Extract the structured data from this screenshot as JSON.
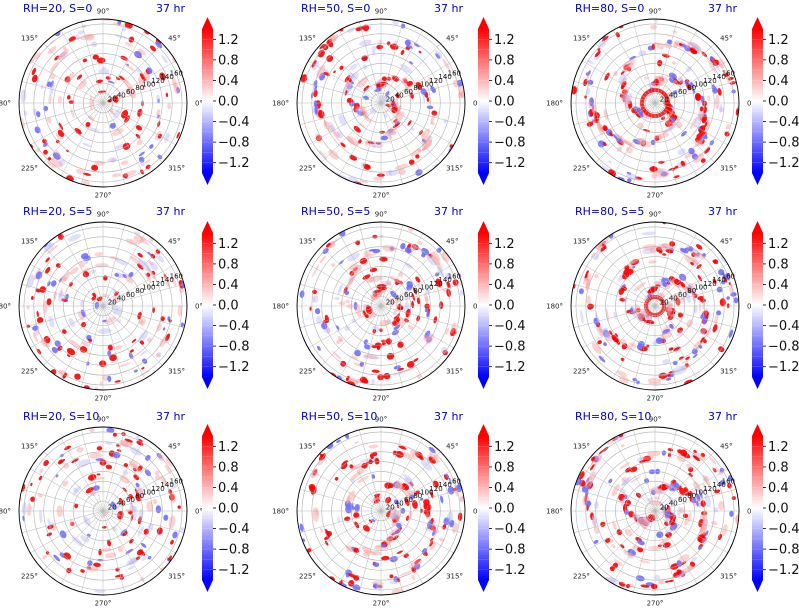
{
  "figure": {
    "colormap": "bwr",
    "cmap_colors": {
      "low": "#0000ff",
      "mid": "#ffffff",
      "high": "#ff0000"
    }
  },
  "chart_data": [
    {
      "type": "heatmap",
      "projection": "polar",
      "title": "RH=20, S=0",
      "time_label": "37 hr",
      "theta_ticks": [
        "0°",
        "45°",
        "90°",
        "135°",
        "180°",
        "225°",
        "270°",
        "315°"
      ],
      "r_ticks": [
        "20",
        "40",
        "60",
        "80",
        "100",
        "120",
        "140",
        "160"
      ],
      "rlim": [
        0,
        170
      ],
      "colorbar": {
        "ticks": [
          "1.2",
          "0.8",
          "0.4",
          "0.0",
          "−0.4",
          "−0.8",
          "−1.2"
        ],
        "range": [
          -1.4,
          1.4
        ],
        "extend": "both"
      }
    },
    {
      "type": "heatmap",
      "projection": "polar",
      "title": "RH=50, S=0",
      "time_label": "37 hr",
      "theta_ticks": [
        "0°",
        "45°",
        "90°",
        "135°",
        "180°",
        "225°",
        "270°",
        "315°"
      ],
      "r_ticks": [
        "20",
        "40",
        "60",
        "80",
        "100",
        "120",
        "140",
        "160"
      ],
      "rlim": [
        0,
        170
      ],
      "colorbar": {
        "ticks": [
          "1.2",
          "0.8",
          "0.4",
          "0.0",
          "−0.4",
          "−0.8",
          "−1.2"
        ],
        "range": [
          -1.4,
          1.4
        ],
        "extend": "both"
      }
    },
    {
      "type": "heatmap",
      "projection": "polar",
      "title": "RH=80, S=0",
      "time_label": "37 hr",
      "theta_ticks": [
        "0°",
        "45°",
        "90°",
        "135°",
        "180°",
        "225°",
        "270°",
        "315°"
      ],
      "r_ticks": [
        "20",
        "40",
        "60",
        "80",
        "100",
        "120",
        "140",
        "160"
      ],
      "rlim": [
        0,
        170
      ],
      "colorbar": {
        "ticks": [
          "1.2",
          "0.8",
          "0.4",
          "0.0",
          "−0.4",
          "−0.8",
          "−1.2"
        ],
        "range": [
          -1.4,
          1.4
        ],
        "extend": "both"
      }
    },
    {
      "type": "heatmap",
      "projection": "polar",
      "title": "RH=20, S=5",
      "time_label": "37 hr",
      "theta_ticks": [
        "0°",
        "45°",
        "90°",
        "135°",
        "180°",
        "225°",
        "270°",
        "315°"
      ],
      "r_ticks": [
        "20",
        "40",
        "60",
        "80",
        "100",
        "120",
        "140",
        "160"
      ],
      "rlim": [
        0,
        170
      ],
      "colorbar": {
        "ticks": [
          "1.2",
          "0.8",
          "0.4",
          "0.0",
          "−0.4",
          "−0.8",
          "−1.2"
        ],
        "range": [
          -1.4,
          1.4
        ],
        "extend": "both"
      }
    },
    {
      "type": "heatmap",
      "projection": "polar",
      "title": "RH=50, S=5",
      "time_label": "37 hr",
      "theta_ticks": [
        "0°",
        "45°",
        "90°",
        "135°",
        "180°",
        "225°",
        "270°",
        "315°"
      ],
      "r_ticks": [
        "20",
        "40",
        "60",
        "80",
        "100",
        "120",
        "140",
        "160"
      ],
      "rlim": [
        0,
        170
      ],
      "colorbar": {
        "ticks": [
          "1.2",
          "0.8",
          "0.4",
          "0.0",
          "−0.4",
          "−0.8",
          "−1.2"
        ],
        "range": [
          -1.4,
          1.4
        ],
        "extend": "both"
      }
    },
    {
      "type": "heatmap",
      "projection": "polar",
      "title": "RH=80, S=5",
      "time_label": "37 hr",
      "theta_ticks": [
        "0°",
        "45°",
        "90°",
        "135°",
        "180°",
        "225°",
        "270°",
        "315°"
      ],
      "r_ticks": [
        "20",
        "40",
        "60",
        "80",
        "100",
        "120",
        "140",
        "160"
      ],
      "rlim": [
        0,
        170
      ],
      "colorbar": {
        "ticks": [
          "1.2",
          "0.8",
          "0.4",
          "0.0",
          "−0.4",
          "−0.8",
          "−1.2"
        ],
        "range": [
          -1.4,
          1.4
        ],
        "extend": "both"
      }
    },
    {
      "type": "heatmap",
      "projection": "polar",
      "title": "RH=20, S=10",
      "time_label": "37 hr",
      "theta_ticks": [
        "0°",
        "45°",
        "90°",
        "135°",
        "180°",
        "225°",
        "270°",
        "315°"
      ],
      "r_ticks": [
        "20",
        "40",
        "60",
        "80",
        "100",
        "120",
        "140",
        "160"
      ],
      "rlim": [
        0,
        170
      ],
      "colorbar": {
        "ticks": [
          "1.2",
          "0.8",
          "0.4",
          "0.0",
          "−0.4",
          "−0.8",
          "−1.2"
        ],
        "range": [
          -1.4,
          1.4
        ],
        "extend": "both"
      }
    },
    {
      "type": "heatmap",
      "projection": "polar",
      "title": "RH=50, S=10",
      "time_label": "37 hr",
      "theta_ticks": [
        "0°",
        "45°",
        "90°",
        "135°",
        "180°",
        "225°",
        "270°",
        "315°"
      ],
      "r_ticks": [
        "20",
        "40",
        "60",
        "80",
        "100",
        "120",
        "140",
        "160"
      ],
      "rlim": [
        0,
        170
      ],
      "colorbar": {
        "ticks": [
          "1.2",
          "0.8",
          "0.4",
          "0.0",
          "−0.4",
          "−0.8",
          "−1.2"
        ],
        "range": [
          -1.4,
          1.4
        ],
        "extend": "both"
      }
    },
    {
      "type": "heatmap",
      "projection": "polar",
      "title": "RH=80, S=10",
      "time_label": "37 hr",
      "theta_ticks": [
        "0°",
        "45°",
        "90°",
        "135°",
        "180°",
        "225°",
        "270°",
        "315°"
      ],
      "r_ticks": [
        "20",
        "40",
        "60",
        "80",
        "100",
        "120",
        "140",
        "160"
      ],
      "rlim": [
        0,
        170
      ],
      "colorbar": {
        "ticks": [
          "1.2",
          "0.8",
          "0.4",
          "0.0",
          "−0.4",
          "−0.8",
          "−1.2"
        ],
        "range": [
          -1.4,
          1.4
        ],
        "extend": "both"
      }
    }
  ]
}
